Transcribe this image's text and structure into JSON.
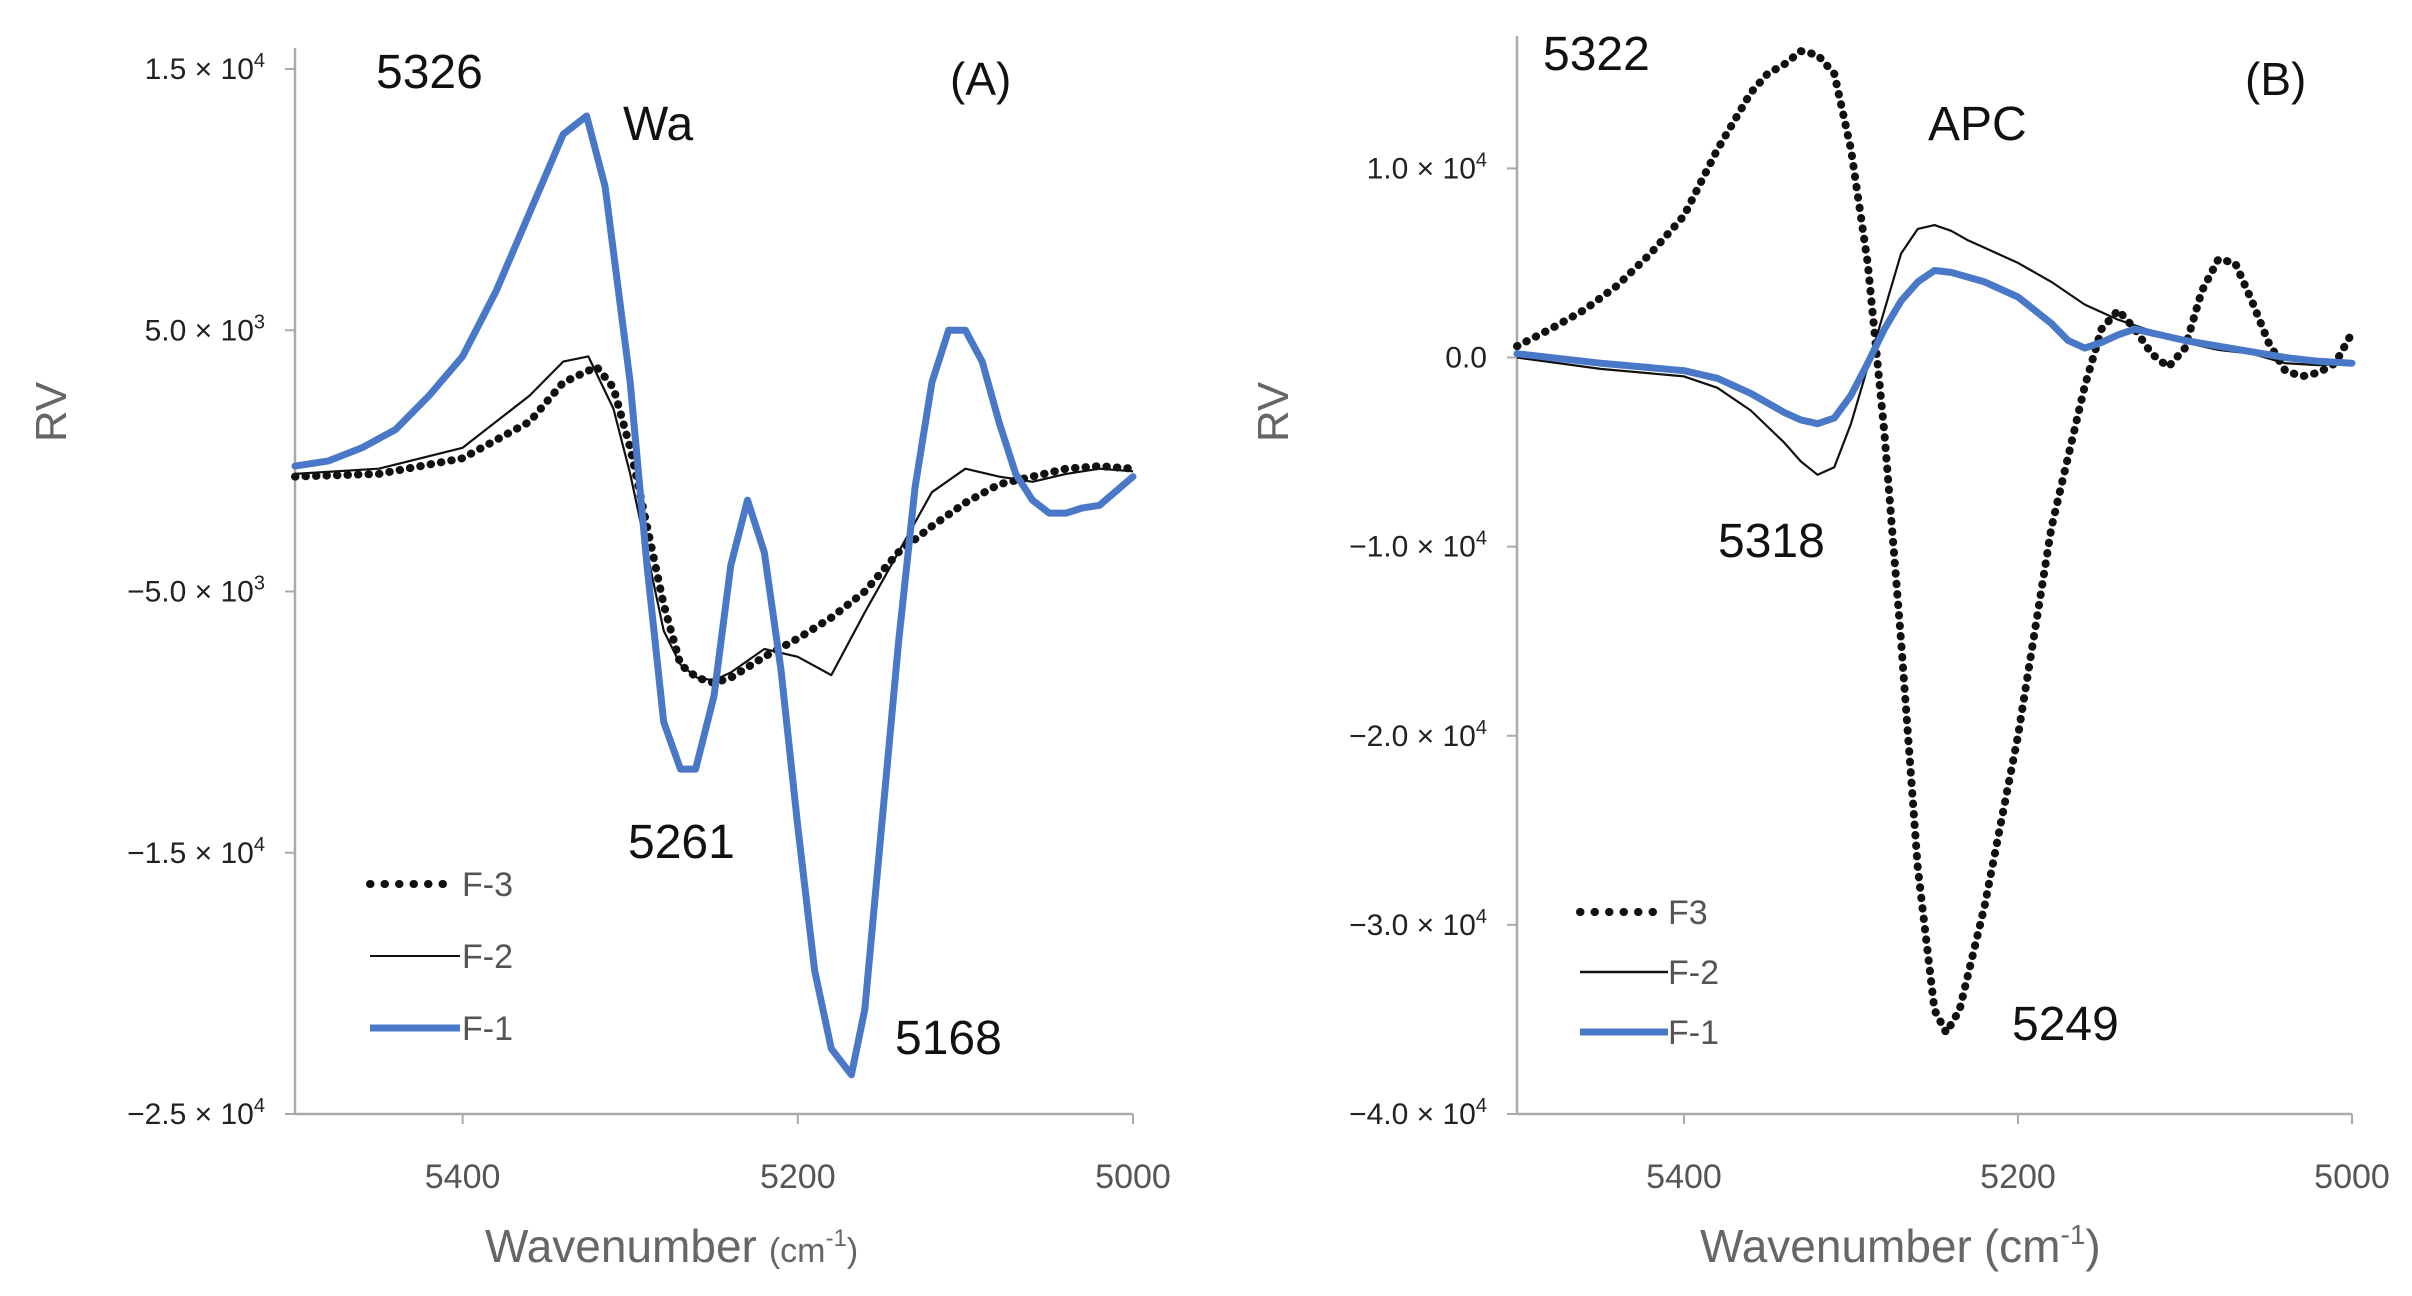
{
  "chart_data": [
    {
      "type": "line",
      "panel_label": "(A)",
      "sample_label": "Wa",
      "xlabel": "Wavenumber",
      "xlabel_unit": "(cm-1)",
      "xlabel_unit_base": "(cm",
      "xlabel_unit_sup": "-1",
      "xlabel_unit_close": ")",
      "ylabel": "RV",
      "xlim": [
        5500,
        5000
      ],
      "ylim": [
        -25000,
        15000
      ],
      "x_ticks": [
        5400,
        5200,
        5000
      ],
      "x_tick_labels": [
        "5400",
        "5200",
        "5000"
      ],
      "y_ticks": [
        15000,
        5000,
        -5000,
        -15000,
        -25000
      ],
      "y_tick_labels": [
        {
          "mant": "1.5 × 10",
          "exp": "4"
        },
        {
          "mant": "5.0 × 10",
          "exp": "3"
        },
        {
          "mant": "−5.0 × 10",
          "exp": "3"
        },
        {
          "mant": "−1.5 × 10",
          "exp": "4"
        },
        {
          "mant": "−2.5 × 10",
          "exp": "4"
        }
      ],
      "legend_position": "bottom-left",
      "annotations": [
        {
          "text": "5326",
          "x": 5390,
          "y": 15000
        },
        {
          "text": "5261",
          "x": 5260,
          "y": -16000
        },
        {
          "text": "5168",
          "x": 5135,
          "y": -23000
        }
      ],
      "series": [
        {
          "name": "F-3",
          "style": "dotted",
          "color": "#111111",
          "x": [
            5500,
            5450,
            5400,
            5360,
            5340,
            5320,
            5310,
            5300,
            5290,
            5280,
            5270,
            5260,
            5250,
            5240,
            5220,
            5200,
            5180,
            5160,
            5140,
            5120,
            5100,
            5080,
            5060,
            5040,
            5020,
            5000
          ],
          "y": [
            -600,
            -500,
            100,
            1500,
            3000,
            3600,
            2800,
            500,
            -2500,
            -5500,
            -7800,
            -8300,
            -8500,
            -8300,
            -7500,
            -6800,
            -6000,
            -5000,
            -3500,
            -2500,
            -1600,
            -900,
            -600,
            -300,
            -200,
            -300
          ]
        },
        {
          "name": "F-2",
          "style": "solid-thin",
          "color": "#111111",
          "x": [
            5500,
            5450,
            5400,
            5360,
            5340,
            5325,
            5310,
            5300,
            5290,
            5280,
            5270,
            5260,
            5250,
            5240,
            5220,
            5200,
            5180,
            5160,
            5140,
            5120,
            5100,
            5080,
            5060,
            5040,
            5020,
            5000
          ],
          "y": [
            -500,
            -300,
            500,
            2500,
            3800,
            4000,
            2000,
            -500,
            -3500,
            -6500,
            -7800,
            -8300,
            -8400,
            -8100,
            -7200,
            -7500,
            -8200,
            -5800,
            -3500,
            -1200,
            -300,
            -600,
            -800,
            -500,
            -300,
            -400
          ]
        },
        {
          "name": "F-1",
          "style": "solid-thick",
          "color": "#4a78c8",
          "x": [
            5500,
            5480,
            5460,
            5440,
            5420,
            5400,
            5380,
            5360,
            5340,
            5326,
            5315,
            5300,
            5290,
            5280,
            5270,
            5261,
            5250,
            5240,
            5230,
            5220,
            5210,
            5200,
            5190,
            5180,
            5168,
            5160,
            5150,
            5140,
            5130,
            5120,
            5110,
            5100,
            5090,
            5080,
            5070,
            5060,
            5050,
            5040,
            5030,
            5020,
            5000
          ],
          "y": [
            -200,
            0,
            500,
            1200,
            2500,
            4000,
            6500,
            9500,
            12500,
            13200,
            10500,
            3000,
            -4000,
            -10000,
            -11800,
            -11800,
            -9000,
            -4000,
            -1500,
            -3500,
            -8000,
            -14000,
            -19500,
            -22500,
            -23500,
            -21000,
            -14000,
            -7000,
            -1000,
            3000,
            5000,
            5000,
            3800,
            1500,
            -500,
            -1500,
            -2000,
            -2000,
            -1800,
            -1700,
            -600
          ]
        }
      ]
    },
    {
      "type": "line",
      "panel_label": "(B)",
      "sample_label": "APC",
      "xlabel": "Wavenumber",
      "xlabel_unit": "(cm-1)",
      "xlabel_unit_base": "(cm",
      "xlabel_unit_sup": "-1",
      "xlabel_unit_close": ")",
      "ylabel": "RV",
      "xlim": [
        5500,
        5000
      ],
      "ylim": [
        -40000,
        17000
      ],
      "x_ticks": [
        5400,
        5200,
        5000
      ],
      "x_tick_labels": [
        "5400",
        "5200",
        "5000"
      ],
      "y_ticks": [
        10000,
        0,
        -10000,
        -20000,
        -30000,
        -40000
      ],
      "y_tick_labels": [
        {
          "mant": "1.0 × 10",
          "exp": "4"
        },
        {
          "mant": "0.0",
          "exp": ""
        },
        {
          "mant": "−1.0 × 10",
          "exp": "4"
        },
        {
          "mant": "−2.0 × 10",
          "exp": "4"
        },
        {
          "mant": "−3.0 × 10",
          "exp": "4"
        },
        {
          "mant": "−4.0 × 10",
          "exp": "4"
        }
      ],
      "legend_position": "bottom-left",
      "annotations": [
        {
          "text": "5322",
          "x": 5462,
          "y": 15000
        },
        {
          "text": "5318",
          "x": 5345,
          "y": -11000
        },
        {
          "text": "5249",
          "x": 5175,
          "y": -35500
        }
      ],
      "series": [
        {
          "name": "F3",
          "style": "dotted",
          "color": "#111111",
          "x": [
            5500,
            5480,
            5460,
            5440,
            5420,
            5400,
            5380,
            5360,
            5350,
            5340,
            5330,
            5320,
            5310,
            5300,
            5290,
            5280,
            5270,
            5260,
            5250,
            5243,
            5235,
            5220,
            5200,
            5180,
            5160,
            5150,
            5140,
            5130,
            5120,
            5110,
            5100,
            5090,
            5080,
            5070,
            5060,
            5050,
            5040,
            5030,
            5020,
            5010,
            5000
          ],
          "y": [
            600,
            1500,
            2500,
            3800,
            5500,
            7500,
            11000,
            14000,
            15000,
            15500,
            16200,
            16000,
            15000,
            11000,
            5000,
            -4000,
            -15000,
            -27000,
            -34500,
            -35700,
            -34500,
            -29000,
            -20000,
            -9000,
            -1500,
            1500,
            2500,
            1500,
            200,
            -500,
            500,
            3500,
            5200,
            5000,
            3000,
            800,
            -700,
            -1000,
            -800,
            -300,
            1300
          ]
        },
        {
          "name": "F-2",
          "style": "solid-thin",
          "color": "#111111",
          "x": [
            5500,
            5450,
            5400,
            5380,
            5360,
            5340,
            5330,
            5320,
            5310,
            5300,
            5290,
            5280,
            5270,
            5260,
            5250,
            5240,
            5230,
            5220,
            5200,
            5180,
            5160,
            5140,
            5120,
            5100,
            5080,
            5060,
            5040,
            5020,
            5000
          ],
          "y": [
            0,
            -600,
            -1000,
            -1600,
            -2800,
            -4500,
            -5500,
            -6200,
            -5800,
            -3500,
            -500,
            2500,
            5500,
            6800,
            7000,
            6700,
            6200,
            5800,
            5000,
            4000,
            2800,
            2000,
            1400,
            800,
            400,
            200,
            -300,
            -400,
            -300
          ]
        },
        {
          "name": "F-1",
          "style": "solid-thick",
          "color": "#4a78c8",
          "x": [
            5500,
            5450,
            5400,
            5380,
            5360,
            5340,
            5330,
            5320,
            5310,
            5300,
            5290,
            5280,
            5270,
            5260,
            5250,
            5240,
            5220,
            5200,
            5180,
            5170,
            5160,
            5150,
            5140,
            5130,
            5120,
            5100,
            5080,
            5060,
            5040,
            5020,
            5000
          ],
          "y": [
            200,
            -300,
            -700,
            -1100,
            -1900,
            -2900,
            -3300,
            -3500,
            -3200,
            -2000,
            -300,
            1500,
            3000,
            4000,
            4600,
            4500,
            4000,
            3200,
            1800,
            900,
            500,
            800,
            1200,
            1500,
            1300,
            900,
            600,
            300,
            0,
            -200,
            -300
          ]
        }
      ]
    }
  ]
}
